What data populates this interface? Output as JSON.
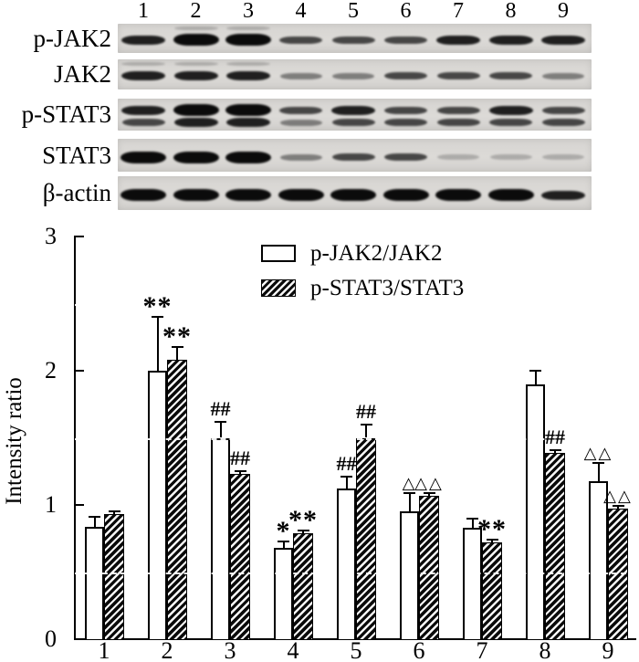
{
  "blot": {
    "lane_numbers": [
      "1",
      "2",
      "3",
      "4",
      "5",
      "6",
      "7",
      "8",
      "9"
    ],
    "rows": [
      {
        "label": "p-JAK2",
        "type": "single",
        "intensities": [
          "dark",
          "strong",
          "strong",
          "medium",
          "medium",
          "medium",
          "dark",
          "dark",
          "dark"
        ],
        "top_smear_lanes": [
          2,
          3
        ]
      },
      {
        "label": "JAK2",
        "type": "single",
        "intensities": [
          "dark",
          "dark",
          "dark",
          "light",
          "light",
          "medium",
          "medium",
          "medium",
          "light"
        ],
        "top_smear_lanes": [
          1,
          2,
          3
        ]
      },
      {
        "label": "p-STAT3",
        "type": "doublet",
        "intensities": [
          "dark",
          "strong",
          "strong",
          "medium",
          "dark",
          "medium",
          "medium",
          "dark",
          "medium"
        ],
        "intensities_bottom": [
          "medium",
          "dark",
          "dark",
          "light",
          "medium",
          "medium",
          "medium",
          "medium",
          "medium"
        ]
      },
      {
        "label": "STAT3",
        "type": "single",
        "intensities": [
          "strong",
          "strong",
          "strong",
          "light",
          "medium",
          "medium",
          "faint",
          "faint",
          "faint"
        ]
      },
      {
        "label": "β-actin",
        "type": "single",
        "intensities": [
          "strong",
          "strong",
          "strong",
          "strong",
          "strong",
          "strong",
          "strong",
          "strong",
          "dark"
        ]
      }
    ]
  },
  "chart_data": {
    "type": "bar",
    "title": "",
    "categories": [
      "1",
      "2",
      "3",
      "4",
      "5",
      "6",
      "7",
      "8",
      "9"
    ],
    "series": [
      {
        "name": "p-JAK2/JAK2",
        "fill": "white",
        "values": [
          0.84,
          2.0,
          1.5,
          0.68,
          1.12,
          0.95,
          0.83,
          1.9,
          1.18
        ],
        "errors": [
          0.07,
          0.4,
          0.12,
          0.05,
          0.09,
          0.14,
          0.07,
          0.1,
          0.13
        ]
      },
      {
        "name": "p-STAT3/STAT3",
        "fill": "hatched",
        "values": [
          0.93,
          2.08,
          1.23,
          0.79,
          1.5,
          1.07,
          0.72,
          1.39,
          0.97
        ],
        "errors": [
          0.02,
          0.1,
          0.02,
          0.02,
          0.1,
          0.02,
          0.02,
          0.02,
          0.02
        ]
      }
    ],
    "significance_markers": [
      {
        "series": 0,
        "group": 2,
        "text": "**"
      },
      {
        "series": 1,
        "group": 2,
        "text": "**"
      },
      {
        "series": 0,
        "group": 3,
        "text": "##"
      },
      {
        "series": 1,
        "group": 3,
        "text": "##"
      },
      {
        "series": 0,
        "group": 4,
        "text": "*"
      },
      {
        "series": 1,
        "group": 4,
        "text": "**"
      },
      {
        "series": 0,
        "group": 5,
        "text": "##"
      },
      {
        "series": 1,
        "group": 5,
        "text": "##"
      },
      {
        "series": 0,
        "group": 6,
        "text": "△"
      },
      {
        "series": 1,
        "group": 6,
        "text": "△△"
      },
      {
        "series": 1,
        "group": 7,
        "text": "**"
      },
      {
        "series": 1,
        "group": 8,
        "text": "##"
      },
      {
        "series": 0,
        "group": 9,
        "text": "△△"
      },
      {
        "series": 1,
        "group": 9,
        "text": "△△"
      }
    ],
    "ylabel": "Intensity ratio",
    "y_ticks": [
      "0",
      "1",
      "2",
      "3"
    ],
    "ylim": [
      0,
      3
    ],
    "legend_position": "top-center",
    "grid": "white dashed lines over bars",
    "gridline_values": [
      0.5,
      1.5,
      2.5
    ]
  },
  "colors": {
    "bar_outline": "#000000",
    "hatch_dark": "#0a0a0a",
    "strip_bg": "#d8d6d3",
    "band_dark": "#0d0d0d"
  }
}
